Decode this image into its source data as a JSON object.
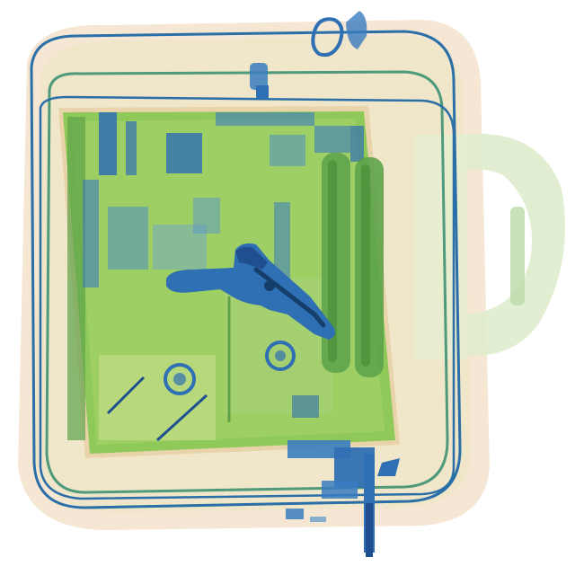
{
  "scene": {
    "kind": "xray-baggage-scan",
    "objects": [
      "bag-outline",
      "bag-handle",
      "laptop-board",
      "battery-cells",
      "handgun",
      "zipper-pull-top",
      "zipper-pull-bottom"
    ],
    "colors": {
      "background": "#ffffff",
      "organic_tint": "#f3d9b8",
      "organic_light": "#eaf0d2",
      "board_green": "#8fc95a",
      "board_dark": "#5ea34a",
      "board_edge": "#c9d98a",
      "metal_blue": "#2f6fb3",
      "metal_dark": "#1f4f8f",
      "dense_dark": "#163e6b",
      "frame_blue": "#2b6fa8",
      "frame_green": "#4f9a7a",
      "handle_green": "#cfe2c0"
    }
  }
}
